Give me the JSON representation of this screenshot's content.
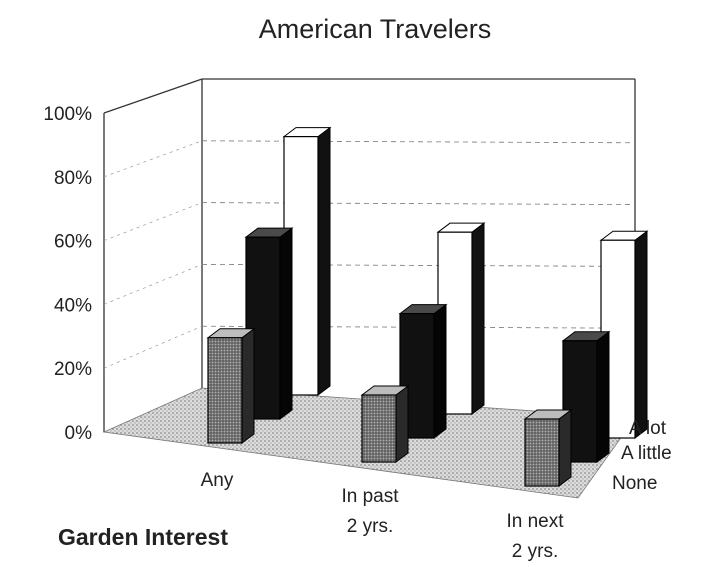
{
  "chart_data": {
    "type": "bar",
    "title": "American Travelers",
    "xlabel": "Garden Interest",
    "categories": [
      "Any",
      "In past 2 yrs.",
      "In next 2 yrs."
    ],
    "series": [
      {
        "name": "None",
        "values": [
          33,
          21,
          21
        ]
      },
      {
        "name": "A little",
        "values": [
          57,
          39,
          38
        ]
      },
      {
        "name": "A lot",
        "values": [
          81,
          57,
          62
        ]
      }
    ],
    "y_ticks": [
      "0%",
      "20%",
      "40%",
      "60%",
      "80%",
      "100%"
    ],
    "ylim": [
      0,
      100
    ],
    "grid": true,
    "legend_position": "right"
  }
}
